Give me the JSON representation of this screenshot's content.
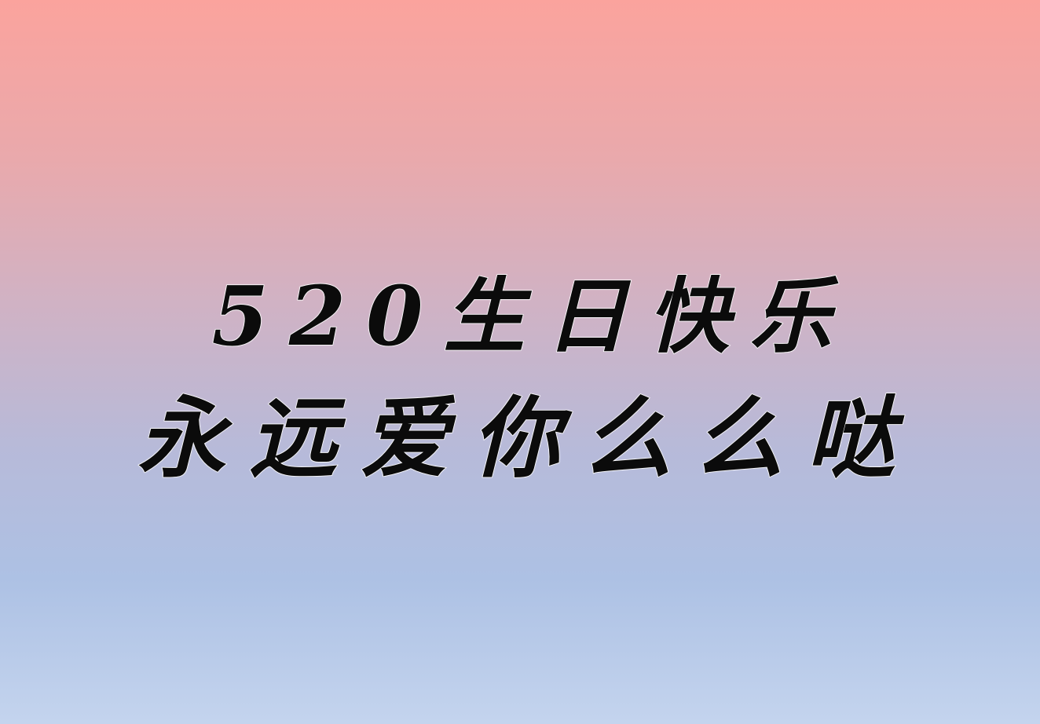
{
  "greeting": {
    "line1": "520生日快乐",
    "line2": "永远爱你么么哒"
  },
  "colors": {
    "gradient_top": "#fba39d",
    "gradient_middle": "#d0b2c4",
    "gradient_bottom": "#c4d4ee",
    "text": "#0b0b0b",
    "text_outline": "#ffffff"
  }
}
